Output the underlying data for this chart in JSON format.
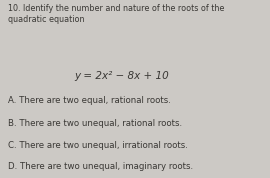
{
  "question_number": "10.",
  "question_text": "Identify the number and nature of the roots of the\nquadratic equation",
  "equation": "y = 2x² − 8x + 10",
  "options": [
    {
      "label": "A.",
      "text": " There are two equal, rational roots."
    },
    {
      "label": "B.",
      "text": " There are two unequal, rational roots."
    },
    {
      "label": "C.",
      "text": " There are two unequal, irrational roots."
    },
    {
      "label": "D.",
      "text": " There are two unequal, imaginary roots."
    }
  ],
  "bg_color": "#ccc9c5",
  "text_color": "#3a3835",
  "question_fontsize": 5.8,
  "equation_fontsize": 7.5,
  "option_fontsize": 6.2,
  "fig_width": 2.7,
  "fig_height": 1.78,
  "dpi": 100
}
